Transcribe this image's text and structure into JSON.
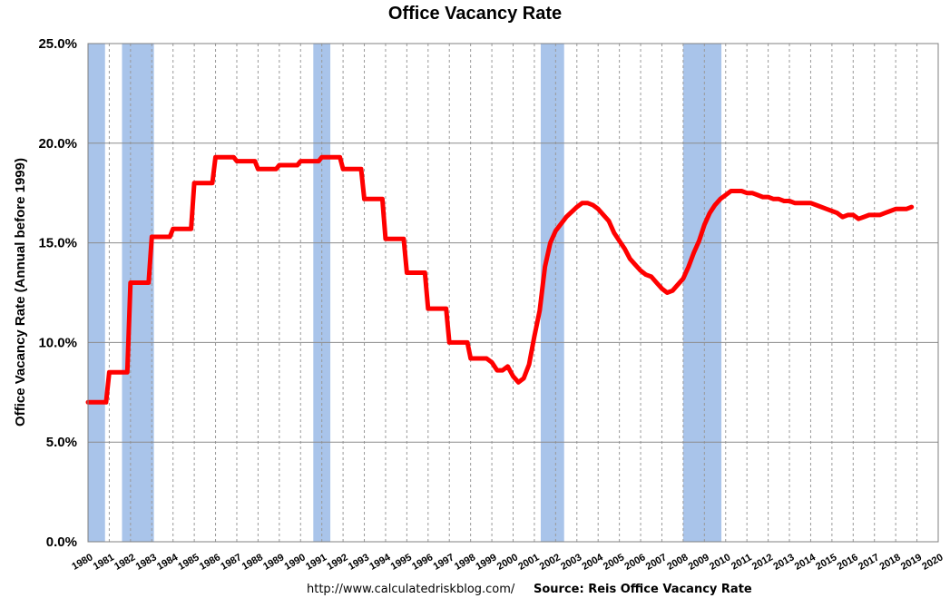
{
  "chart_data": {
    "type": "line",
    "title": "Office Vacancy Rate",
    "ylabel": "Office Vacancy Rate (Annual before 1999)",
    "xlabel": "",
    "ylim": [
      0,
      25
    ],
    "xlim": [
      1980,
      2020
    ],
    "yticks": [
      "0.0%",
      "5.0%",
      "10.0%",
      "15.0%",
      "20.0%",
      "25.0%"
    ],
    "xticks": [
      "1980",
      "1981",
      "1982",
      "1983",
      "1984",
      "1985",
      "1986",
      "1987",
      "1988",
      "1989",
      "1990",
      "1991",
      "1992",
      "1993",
      "1994",
      "1995",
      "1996",
      "1997",
      "1998",
      "1999",
      "2000",
      "2001",
      "2002",
      "2003",
      "2004",
      "2005",
      "2006",
      "2007",
      "2008",
      "2009",
      "2010",
      "2011",
      "2012",
      "2013",
      "2014",
      "2015",
      "2016",
      "2017",
      "2018",
      "2019",
      "2020"
    ],
    "grid": true,
    "line_color": "#ff0000",
    "recession_color": "#a9c4ea",
    "recessions": [
      [
        1980.0,
        1980.8
      ],
      [
        1981.6,
        1983.1
      ],
      [
        1990.6,
        1991.4
      ],
      [
        2001.3,
        2002.4
      ],
      [
        2008.0,
        2009.8
      ]
    ],
    "series": [
      {
        "values": [
          [
            1980.0,
            7.0
          ],
          [
            1980.85,
            7.0
          ],
          [
            1981.0,
            8.5
          ],
          [
            1981.85,
            8.5
          ],
          [
            1982.0,
            13.0
          ],
          [
            1982.85,
            13.0
          ],
          [
            1983.0,
            15.3
          ],
          [
            1983.85,
            15.3
          ],
          [
            1984.0,
            15.7
          ],
          [
            1984.85,
            15.7
          ],
          [
            1985.0,
            18.0
          ],
          [
            1985.85,
            18.0
          ],
          [
            1986.0,
            19.3
          ],
          [
            1986.85,
            19.3
          ],
          [
            1987.0,
            19.1
          ],
          [
            1987.85,
            19.1
          ],
          [
            1988.0,
            18.7
          ],
          [
            1988.85,
            18.7
          ],
          [
            1989.0,
            18.9
          ],
          [
            1989.85,
            18.9
          ],
          [
            1990.0,
            19.1
          ],
          [
            1990.85,
            19.1
          ],
          [
            1991.0,
            19.3
          ],
          [
            1991.85,
            19.3
          ],
          [
            1992.0,
            18.7
          ],
          [
            1992.85,
            18.7
          ],
          [
            1993.0,
            17.2
          ],
          [
            1993.85,
            17.2
          ],
          [
            1994.0,
            15.2
          ],
          [
            1994.85,
            15.2
          ],
          [
            1995.0,
            13.5
          ],
          [
            1995.85,
            13.5
          ],
          [
            1996.0,
            11.7
          ],
          [
            1996.85,
            11.7
          ],
          [
            1997.0,
            10.0
          ],
          [
            1997.85,
            10.0
          ],
          [
            1998.0,
            9.2
          ],
          [
            1998.75,
            9.2
          ],
          [
            1999.0,
            9.0
          ],
          [
            1999.25,
            8.6
          ],
          [
            1999.5,
            8.6
          ],
          [
            1999.75,
            8.8
          ],
          [
            2000.0,
            8.3
          ],
          [
            2000.25,
            8.0
          ],
          [
            2000.5,
            8.2
          ],
          [
            2000.75,
            8.9
          ],
          [
            2001.0,
            10.3
          ],
          [
            2001.25,
            11.6
          ],
          [
            2001.5,
            13.8
          ],
          [
            2001.75,
            15.0
          ],
          [
            2002.0,
            15.6
          ],
          [
            2002.5,
            16.3
          ],
          [
            2003.0,
            16.8
          ],
          [
            2003.25,
            17.0
          ],
          [
            2003.5,
            17.0
          ],
          [
            2003.75,
            16.9
          ],
          [
            2004.0,
            16.7
          ],
          [
            2004.25,
            16.4
          ],
          [
            2004.5,
            16.1
          ],
          [
            2004.75,
            15.5
          ],
          [
            2005.0,
            15.1
          ],
          [
            2005.25,
            14.7
          ],
          [
            2005.5,
            14.2
          ],
          [
            2005.75,
            13.9
          ],
          [
            2006.0,
            13.6
          ],
          [
            2006.25,
            13.4
          ],
          [
            2006.5,
            13.3
          ],
          [
            2006.75,
            13.0
          ],
          [
            2007.0,
            12.7
          ],
          [
            2007.25,
            12.5
          ],
          [
            2007.5,
            12.6
          ],
          [
            2007.75,
            12.9
          ],
          [
            2008.0,
            13.2
          ],
          [
            2008.25,
            13.8
          ],
          [
            2008.5,
            14.5
          ],
          [
            2008.75,
            15.1
          ],
          [
            2009.0,
            15.9
          ],
          [
            2009.25,
            16.5
          ],
          [
            2009.5,
            16.9
          ],
          [
            2009.75,
            17.2
          ],
          [
            2010.0,
            17.4
          ],
          [
            2010.25,
            17.6
          ],
          [
            2010.5,
            17.6
          ],
          [
            2010.75,
            17.6
          ],
          [
            2011.0,
            17.5
          ],
          [
            2011.25,
            17.5
          ],
          [
            2011.5,
            17.4
          ],
          [
            2011.75,
            17.3
          ],
          [
            2012.0,
            17.3
          ],
          [
            2012.25,
            17.2
          ],
          [
            2012.5,
            17.2
          ],
          [
            2012.75,
            17.1
          ],
          [
            2013.0,
            17.1
          ],
          [
            2013.25,
            17.0
          ],
          [
            2013.5,
            17.0
          ],
          [
            2013.75,
            17.0
          ],
          [
            2014.0,
            17.0
          ],
          [
            2014.25,
            16.9
          ],
          [
            2014.5,
            16.8
          ],
          [
            2014.75,
            16.7
          ],
          [
            2015.0,
            16.6
          ],
          [
            2015.25,
            16.5
          ],
          [
            2015.5,
            16.3
          ],
          [
            2015.75,
            16.4
          ],
          [
            2016.0,
            16.4
          ],
          [
            2016.25,
            16.2
          ],
          [
            2016.5,
            16.3
          ],
          [
            2016.75,
            16.4
          ],
          [
            2017.0,
            16.4
          ],
          [
            2017.25,
            16.4
          ],
          [
            2017.5,
            16.5
          ],
          [
            2017.75,
            16.6
          ],
          [
            2018.0,
            16.7
          ],
          [
            2018.25,
            16.7
          ],
          [
            2018.5,
            16.7
          ],
          [
            2018.75,
            16.8
          ]
        ]
      }
    ]
  },
  "footer": {
    "url": "http://www.calculatedriskblog.com/",
    "source": "Source: Reis Office Vacancy Rate"
  }
}
